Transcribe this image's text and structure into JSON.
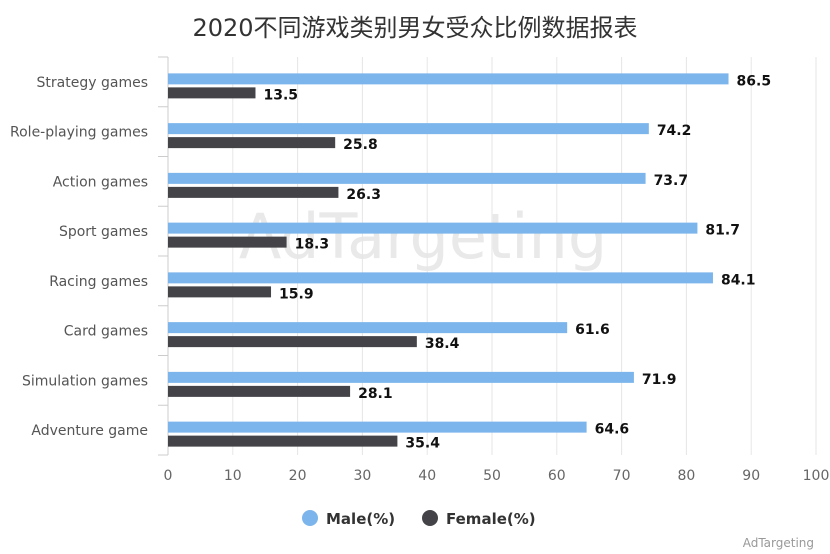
{
  "chart_data": {
    "type": "bar",
    "orientation": "horizontal",
    "title": "2020不同游戏类别男女受众比例数据报表",
    "categories": [
      "Strategy games",
      "Role-playing games",
      "Action games",
      "Sport games",
      "Racing games",
      "Card games",
      "Simulation games",
      "Adventure game"
    ],
    "series": [
      {
        "name": "Male(%)",
        "values": [
          86.5,
          74.2,
          73.7,
          81.7,
          84.1,
          61.6,
          71.9,
          64.6
        ],
        "color": "#7cb5ec"
      },
      {
        "name": "Female(%)",
        "values": [
          13.5,
          25.8,
          26.3,
          18.3,
          15.9,
          38.4,
          28.1,
          35.4
        ],
        "color": "#434348"
      }
    ],
    "xlim": [
      0,
      100
    ],
    "ticks": [
      "0",
      "10",
      "20",
      "30",
      "40",
      "50",
      "60",
      "70",
      "80",
      "90",
      "100"
    ],
    "grid": true,
    "legend": "bottom",
    "data_labels": true
  },
  "watermark": "AdTargeting",
  "credit": "AdTargeting"
}
